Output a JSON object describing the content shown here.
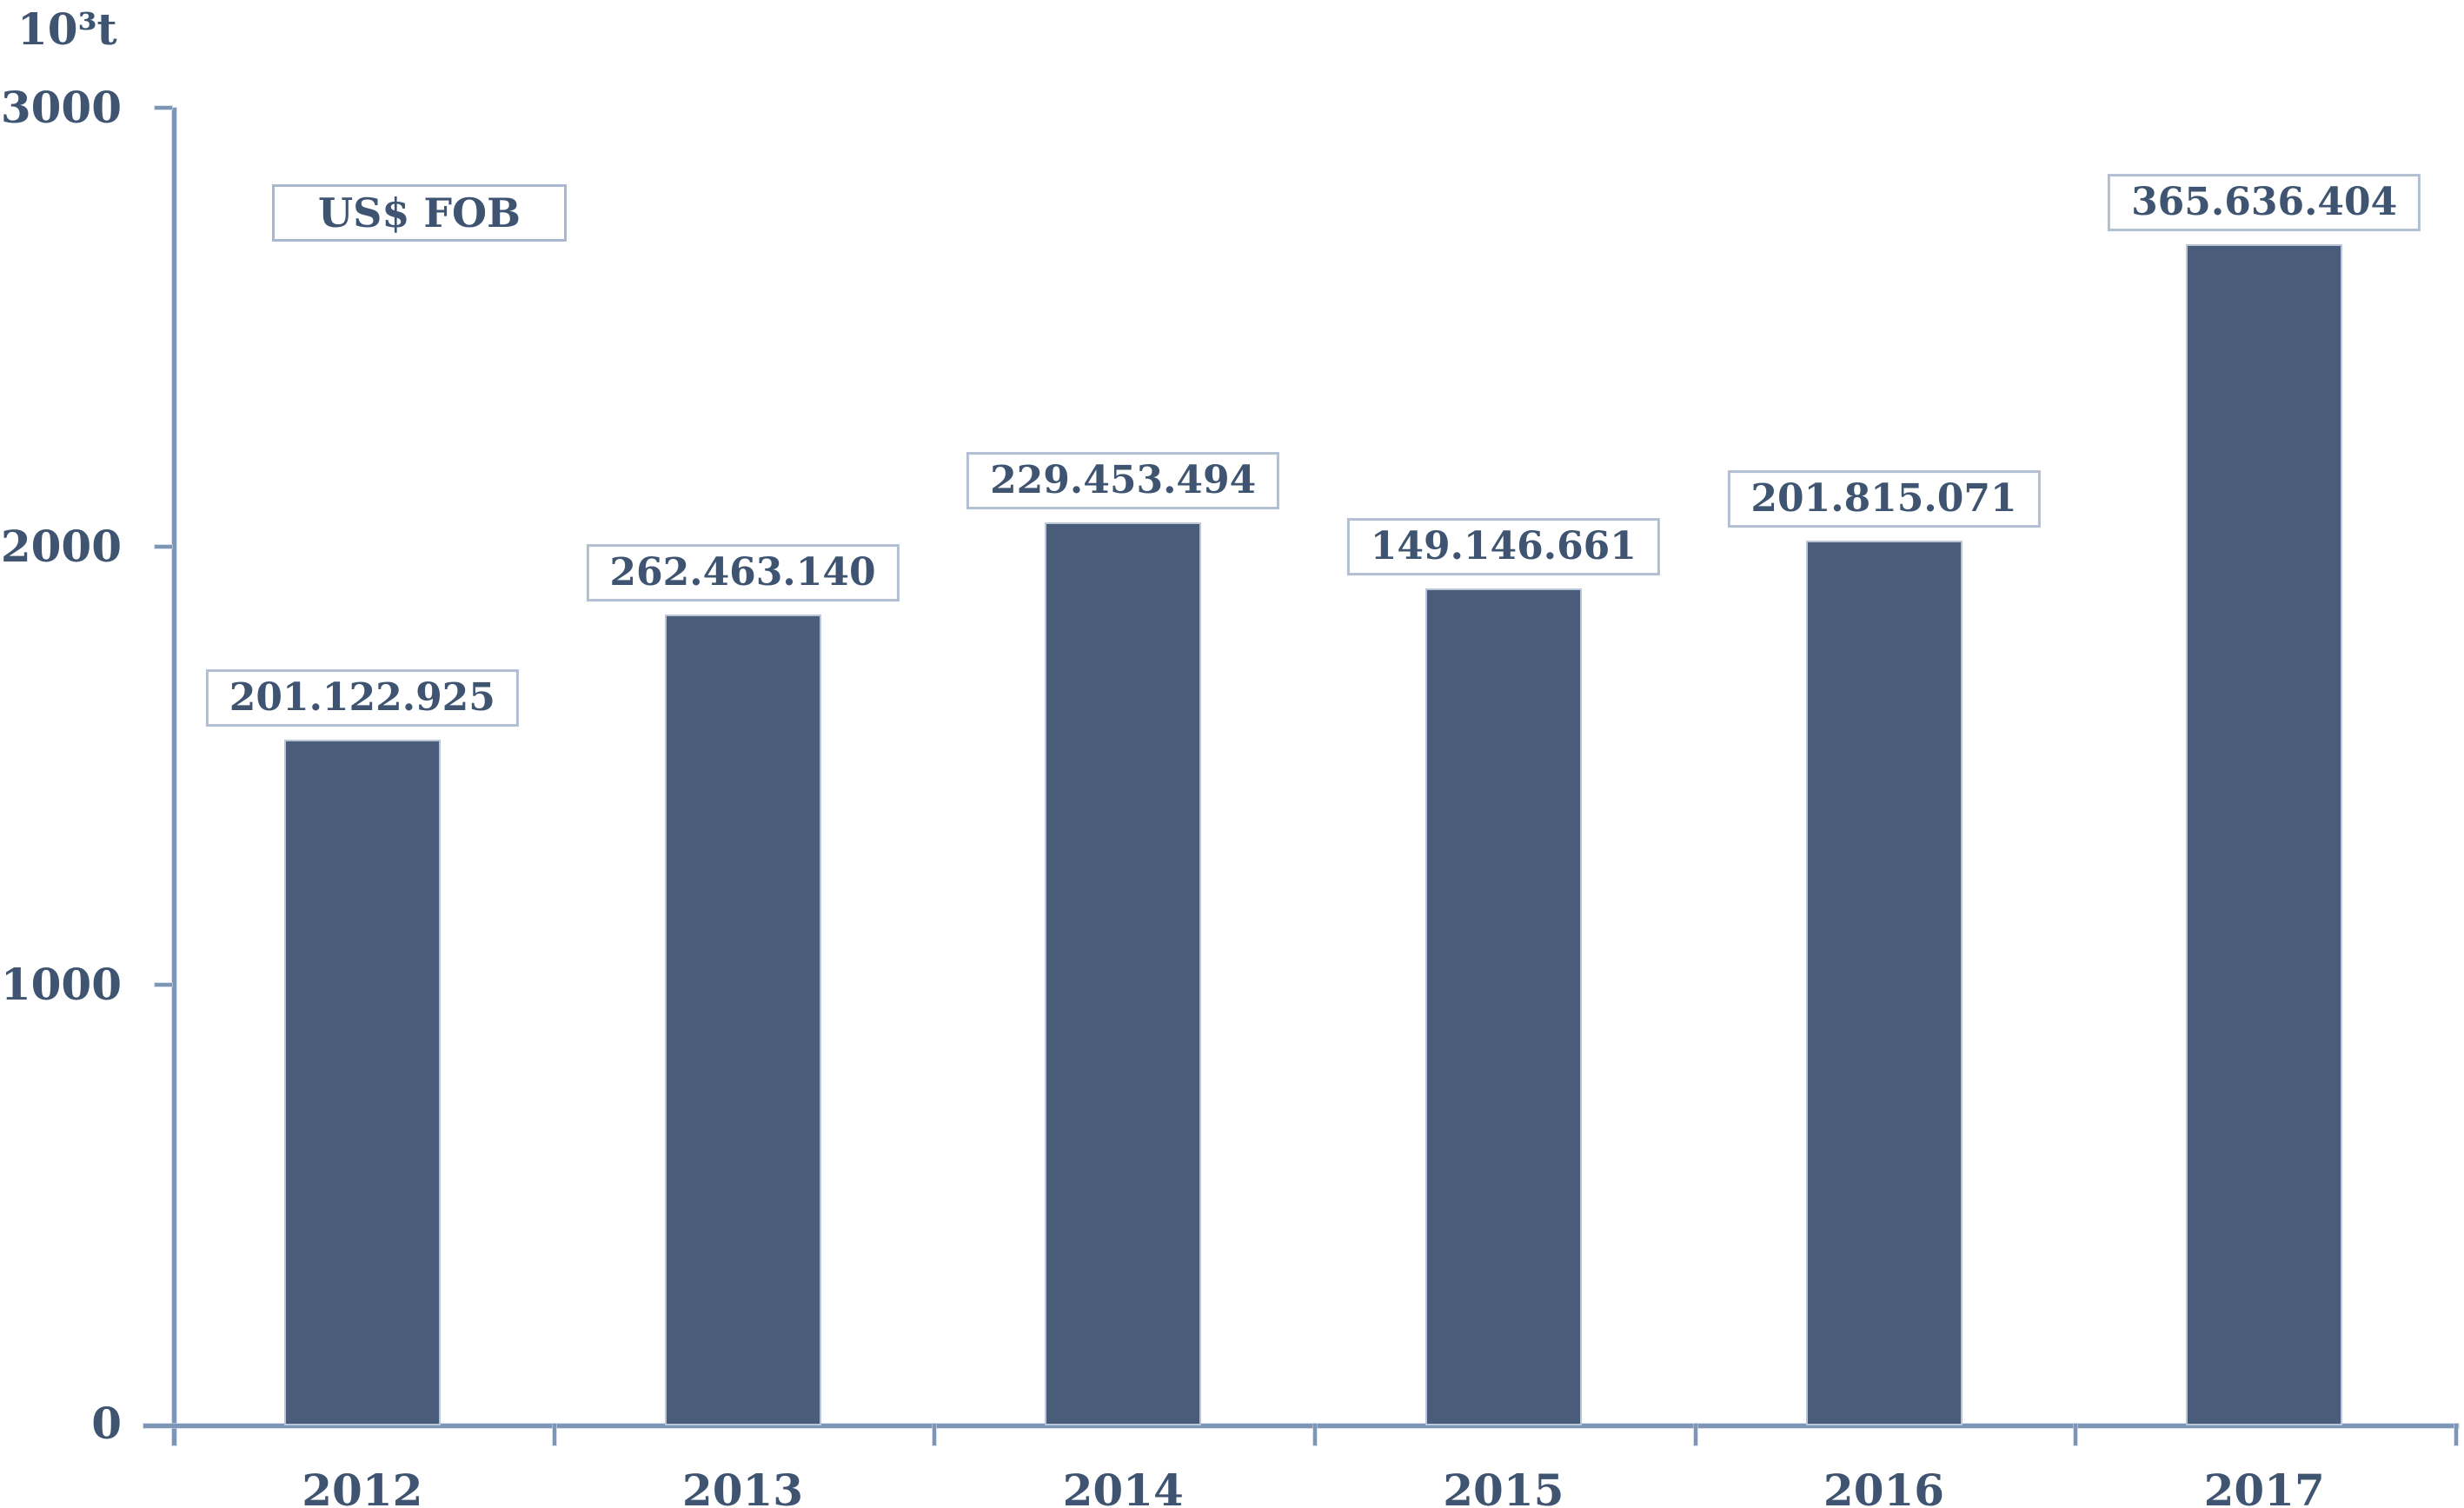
{
  "chart_data": {
    "type": "bar",
    "title": "",
    "unit_label": "10³t",
    "legend": "US$ FOB",
    "categories": [
      "2012",
      "2013",
      "2014",
      "2015",
      "2016",
      "2017"
    ],
    "series": [
      {
        "name": "10³t",
        "values": [
          1555,
          1840,
          2050,
          1900,
          2010,
          2685
        ]
      }
    ],
    "bar_labels": [
      "201.122.925",
      "262.463.140",
      "229.453.494",
      "149.146.661",
      "201.815.071",
      "365.636.404"
    ],
    "ylabel": "10³t",
    "ylim": [
      0,
      3000
    ],
    "yticks": [
      0,
      1000,
      2000,
      3000
    ],
    "grid": false,
    "legend_position": "top-left",
    "colors": {
      "bar": "#495c79",
      "text": "#3e5471",
      "axis": "#7e96b6",
      "label_box_border": "#b2bfd3",
      "background": "#ffffff"
    }
  }
}
